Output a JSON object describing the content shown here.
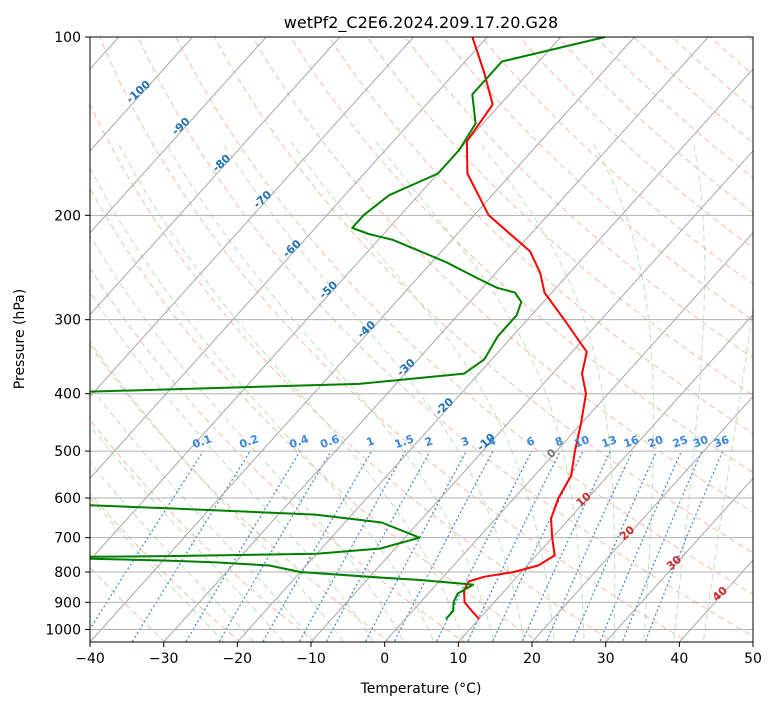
{
  "chart_data": {
    "type": "line",
    "title": "wetPf2_C2E6.2024.209.17.20.G28",
    "xlabel": "Temperature (°C)",
    "ylabel": "Pressure (hPa)",
    "xlim": [
      -40,
      50
    ],
    "ylim": [
      1050,
      100
    ],
    "y_scale": "log",
    "x_ticks": [
      -40,
      -30,
      -20,
      -10,
      0,
      10,
      20,
      30,
      40,
      50
    ],
    "y_ticks": [
      100,
      200,
      300,
      400,
      500,
      600,
      700,
      800,
      900,
      1000
    ],
    "grid": true,
    "skew": "skew-T",
    "isotherm_labels": [
      "-100",
      "-90",
      "-80",
      "-70",
      "-60",
      "-50",
      "-40",
      "-30",
      "-20",
      "-10",
      "0",
      "10",
      "20",
      "30",
      "40"
    ],
    "mixing_ratio_labels": [
      "0.1",
      "0.2",
      "0.4",
      "0.6",
      "1",
      "1.5",
      "2",
      "3",
      "4",
      "6",
      "8",
      "10",
      "13",
      "16",
      "20",
      "25",
      "30",
      "36"
    ],
    "series": [
      {
        "color": "#ff0000",
        "pressure": [
          960,
          930,
          900,
          860,
          830,
          815,
          800,
          780,
          750,
          700,
          650,
          600,
          550,
          500,
          450,
          400,
          370,
          340,
          300,
          270,
          250,
          230,
          200,
          170,
          150,
          130,
          115,
          100
        ],
        "temperature": [
          10,
          8,
          6,
          4.5,
          4,
          5.5,
          9,
          11.5,
          12.5,
          10,
          7.5,
          6,
          5,
          2.5,
          0,
          -3,
          -6,
          -8,
          -15,
          -21,
          -24,
          -28,
          -38,
          -46,
          -50,
          -51,
          -56,
          -62
        ]
      },
      {
        "color": "#008000",
        "pressure": [
          960,
          930,
          900,
          870,
          840,
          825,
          818,
          800,
          780,
          770,
          765,
          760,
          755,
          752,
          745,
          730,
          700,
          660,
          640,
          625,
          615,
          600,
          500,
          400,
          385,
          370,
          350,
          320,
          295,
          280,
          270,
          265,
          255,
          240,
          220,
          215,
          210,
          200,
          185,
          170,
          155,
          140,
          125,
          110,
          100
        ],
        "temperature": [
          5.5,
          5.5,
          4.5,
          4,
          5,
          -3,
          -8,
          -20,
          -25,
          -33,
          -40,
          -50,
          -55,
          -40,
          -20,
          -12,
          -8,
          -15,
          -25,
          -45,
          -60,
          -70,
          -75,
          -80,
          -35,
          -22,
          -21,
          -22,
          -22,
          -23,
          -25,
          -28,
          -32,
          -38,
          -48,
          -52,
          -55,
          -55,
          -54,
          -50,
          -50,
          -51,
          -55,
          -55,
          -44
        ]
      }
    ]
  }
}
